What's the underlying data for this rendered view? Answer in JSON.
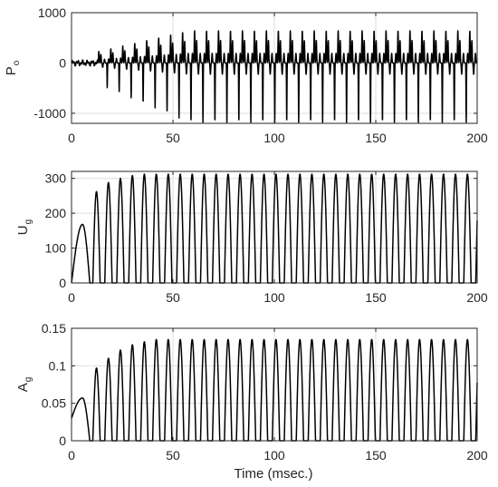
{
  "chart_data": [
    {
      "type": "line",
      "ylabel": "P",
      "ylabel_sub": "o",
      "xlabel": "",
      "xlim": [
        0,
        200
      ],
      "ylim": [
        -1200,
        1000
      ],
      "xticks": [
        "0",
        "50",
        "100",
        "150",
        "200"
      ],
      "yticks": [
        {
          "value": -1000,
          "label": "-1000"
        },
        {
          "value": 0,
          "label": "0"
        },
        {
          "value": 1000,
          "label": "1000"
        }
      ],
      "grid": true,
      "series": [
        {
          "color": "#000000",
          "kind": "oscillating",
          "onset_ms": 13,
          "period_ms": 5.9,
          "peak_max": 640,
          "trough_min": -1180,
          "initial_noise": 60
        }
      ]
    },
    {
      "type": "line",
      "ylabel": "U",
      "ylabel_sub": "g",
      "xlabel": "",
      "xlim": [
        0,
        200
      ],
      "ylim": [
        0,
        320
      ],
      "xticks": [
        "0",
        "50",
        "100",
        "150",
        "200"
      ],
      "yticks": [
        {
          "value": 0,
          "label": "0"
        },
        {
          "value": 100,
          "label": "100"
        },
        {
          "value": 200,
          "label": "200"
        },
        {
          "value": 300,
          "label": "300"
        }
      ],
      "grid": true,
      "series": [
        {
          "color": "#000000",
          "kind": "pulse_train",
          "first_pulse": {
            "start": 0,
            "end": 9,
            "peak": 168
          },
          "pulse_start_ms": 10.5,
          "period_ms": 5.9,
          "pulse_width_ms": 3.6,
          "peaks": [
            262,
            288,
            300,
            308,
            312
          ]
        }
      ]
    },
    {
      "type": "line",
      "ylabel": "A",
      "ylabel_sub": "g",
      "xlabel": "Time (msec.)",
      "xlim": [
        0,
        200
      ],
      "ylim": [
        0,
        0.15
      ],
      "xticks": [
        "0",
        "50",
        "100",
        "150",
        "200"
      ],
      "yticks": [
        {
          "value": 0,
          "label": "0"
        },
        {
          "value": 0.05,
          "label": "0.05"
        },
        {
          "value": 0.1,
          "label": "0.1"
        },
        {
          "value": 0.15,
          "label": "0.15"
        }
      ],
      "grid": true,
      "series": [
        {
          "color": "#000000",
          "kind": "pulse_train",
          "first_pulse": {
            "start": 0,
            "end": 9,
            "peak": 0.057,
            "baseline": 0.03
          },
          "pulse_start_ms": 10.5,
          "period_ms": 5.9,
          "pulse_width_ms": 3.6,
          "peaks": [
            0.097,
            0.11,
            0.121,
            0.128,
            0.132,
            0.135
          ]
        }
      ]
    }
  ]
}
